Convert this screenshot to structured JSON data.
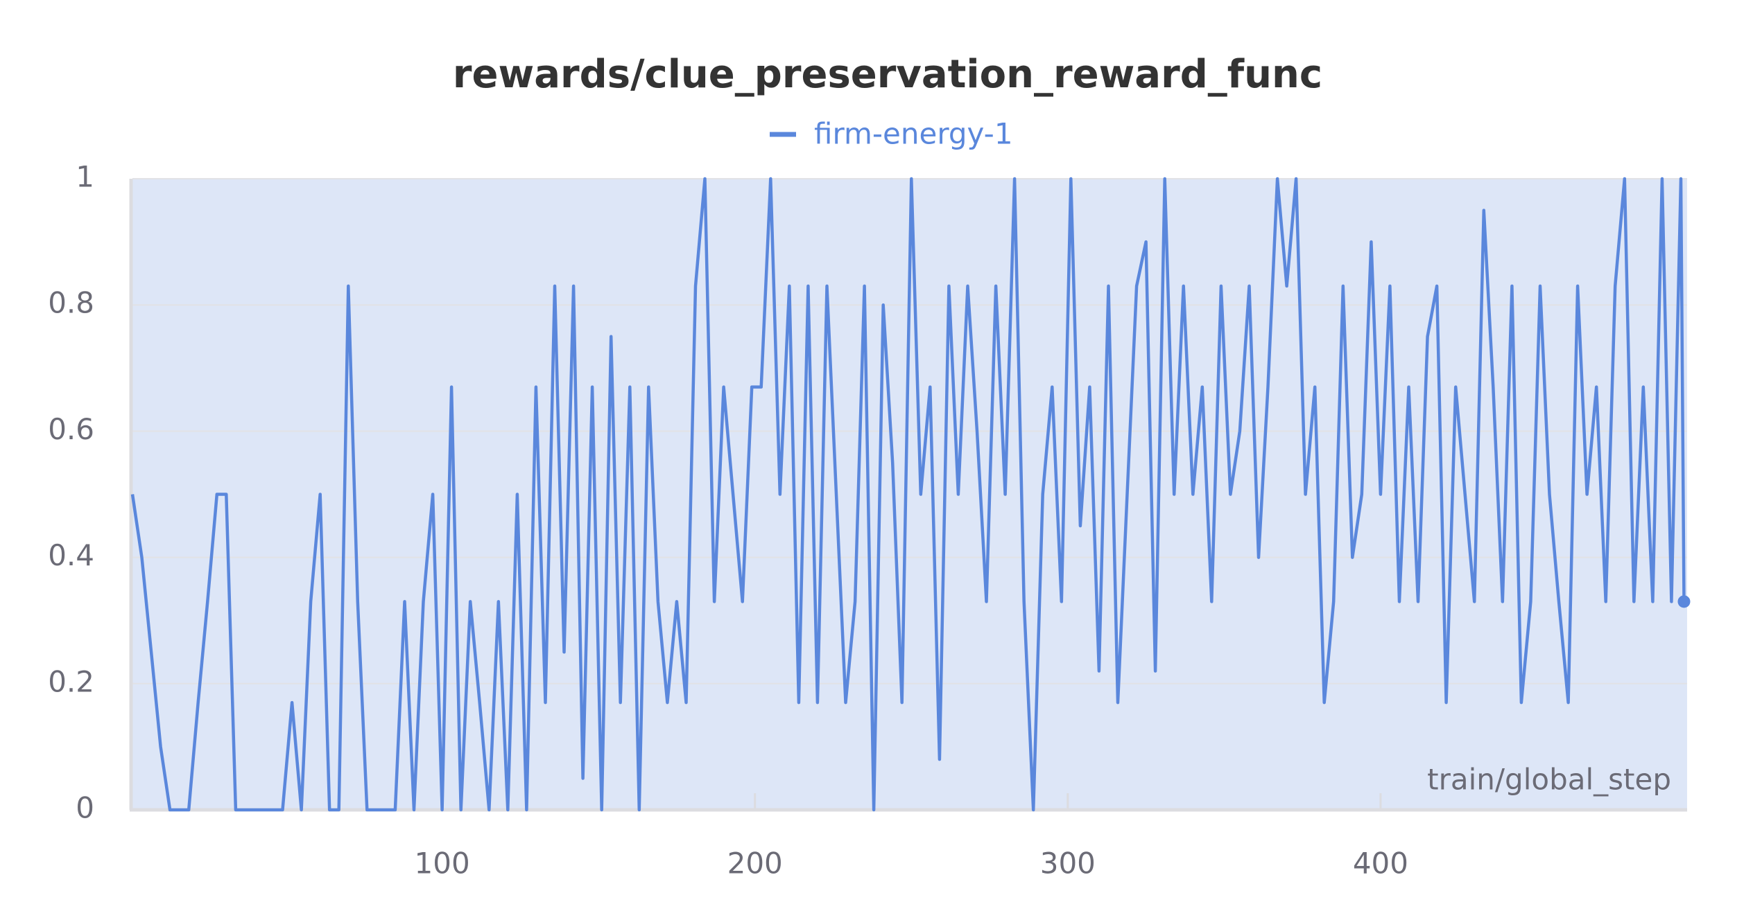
{
  "chart_data": {
    "type": "line",
    "title": "rewards/clue_preservation_reward_func",
    "x_label": "train/global_step",
    "x": [
      1,
      4,
      7,
      10,
      13,
      16,
      19,
      22,
      25,
      28,
      31,
      34,
      37,
      40,
      43,
      46,
      49,
      52,
      55,
      58,
      61,
      64,
      67,
      70,
      73,
      76,
      79,
      82,
      85,
      88,
      91,
      94,
      97,
      100,
      103,
      106,
      109,
      112,
      115,
      118,
      121,
      124,
      127,
      130,
      133,
      136,
      139,
      142,
      145,
      148,
      151,
      154,
      157,
      160,
      163,
      166,
      169,
      172,
      175,
      178,
      181,
      184,
      187,
      190,
      193,
      196,
      199,
      202,
      205,
      208,
      211,
      214,
      217,
      220,
      223,
      226,
      229,
      232,
      235,
      238,
      241,
      244,
      247,
      250,
      253,
      256,
      259,
      262,
      265,
      268,
      271,
      274,
      277,
      280,
      283,
      286,
      289,
      292,
      295,
      298,
      301,
      304,
      307,
      310,
      313,
      316,
      319,
      322,
      325,
      328,
      331,
      334,
      337,
      340,
      343,
      346,
      349,
      352,
      355,
      358,
      361,
      364,
      367,
      370,
      373,
      376,
      379,
      382,
      385,
      388,
      391,
      394,
      397,
      400,
      403,
      406,
      409,
      412,
      415,
      418,
      421,
      424,
      427,
      430,
      433,
      436,
      439,
      442,
      445,
      448,
      451,
      454,
      457,
      460,
      463,
      466,
      469,
      472,
      475,
      478,
      481,
      484,
      487,
      490,
      493,
      496,
      497
    ],
    "series": [
      {
        "name": "firm-energy-1",
        "color": "#5a87dc",
        "values": [
          0.5,
          0.4,
          0.25,
          0.1,
          0,
          0,
          0,
          0.17,
          0.33,
          0.5,
          0.5,
          0,
          0,
          0,
          0,
          0,
          0,
          0.17,
          0,
          0.33,
          0.5,
          0,
          0,
          0.83,
          0.33,
          0,
          0,
          0,
          0,
          0.33,
          0,
          0.33,
          0.5,
          0,
          0.67,
          0,
          0.33,
          0.17,
          0,
          0.33,
          0,
          0.5,
          0,
          0.67,
          0.17,
          0.83,
          0.25,
          0.83,
          0.05,
          0.67,
          0,
          0.75,
          0.17,
          0.67,
          0,
          0.67,
          0.33,
          0.17,
          0.33,
          0.17,
          0.83,
          1,
          0.33,
          0.67,
          0.5,
          0.33,
          0.67,
          0.67,
          1,
          0.5,
          0.83,
          0.17,
          0.83,
          0.17,
          0.83,
          0.5,
          0.17,
          0.33,
          0.83,
          0,
          0.8,
          0.55,
          0.17,
          1,
          0.5,
          0.67,
          0.08,
          0.83,
          0.5,
          0.83,
          0.6,
          0.33,
          0.83,
          0.5,
          1,
          0.33,
          0,
          0.5,
          0.67,
          0.33,
          1,
          0.45,
          0.67,
          0.22,
          0.83,
          0.17,
          0.5,
          0.83,
          0.9,
          0.22,
          1,
          0.5,
          0.83,
          0.5,
          0.67,
          0.33,
          0.83,
          0.5,
          0.6,
          0.83,
          0.4,
          0.67,
          1,
          0.83,
          1,
          0.5,
          0.67,
          0.17,
          0.33,
          0.83,
          0.4,
          0.5,
          0.9,
          0.5,
          0.83,
          0.33,
          0.67,
          0.33,
          0.75,
          0.83,
          0.17,
          0.67,
          0.5,
          0.33,
          0.95,
          0.67,
          0.33,
          0.83,
          0.17,
          0.33,
          0.83,
          0.5,
          0.33,
          0.17,
          0.83,
          0.5,
          0.67,
          0.33,
          0.83,
          1,
          0.33,
          0.67,
          0.33,
          1,
          0.33,
          1,
          0.33
        ]
      }
    ],
    "xlim": [
      1,
      498
    ],
    "xticks": [
      100,
      200,
      300,
      400
    ],
    "ylim": [
      0,
      1
    ],
    "yticks": [
      0,
      0.2,
      0.4,
      0.6,
      0.8,
      1
    ],
    "grid": true
  }
}
